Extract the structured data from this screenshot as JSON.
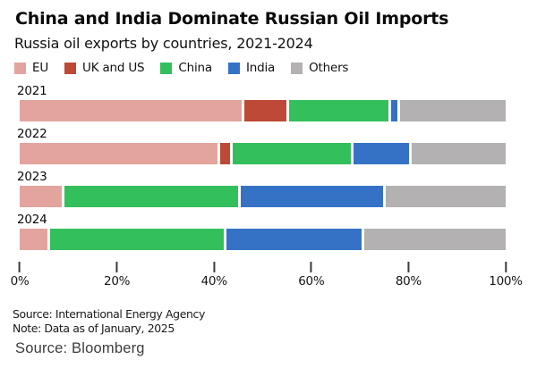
{
  "header": {
    "title": "China and India Dominate Russian Oil Imports",
    "subtitle": "Russia oil exports by countries, 2021-2024"
  },
  "chart_data": {
    "type": "bar",
    "orientation": "horizontal",
    "stacked": true,
    "unit": "%",
    "categories": [
      "2021",
      "2022",
      "2023",
      "2024"
    ],
    "series": [
      {
        "name": "EU",
        "color": "#e3a49e",
        "values": [
          46.0,
          41.0,
          8.7,
          5.7
        ]
      },
      {
        "name": "UK and US",
        "color": "#bd4936",
        "values": [
          8.7,
          2.2,
          0,
          0
        ]
      },
      {
        "name": "China",
        "color": "#33bf5c",
        "values": [
          20.5,
          24.5,
          35.8,
          35.8
        ]
      },
      {
        "name": "India",
        "color": "#3572c6",
        "values": [
          1.4,
          11.5,
          29.2,
          27.8
        ]
      },
      {
        "name": "Others",
        "color": "#b3b1b1",
        "values": [
          21.8,
          19.5,
          24.8,
          29.2
        ]
      }
    ],
    "xlim": [
      0,
      100
    ],
    "x_ticks": [
      "0%",
      "20%",
      "40%",
      "60%",
      "80%",
      "100%"
    ],
    "legend_position": "top",
    "grid": false
  },
  "footer": {
    "source": "Source: International Energy Agency",
    "note": "Note: Data as of January, 2025",
    "bloomberg": "Source: Bloomberg"
  }
}
